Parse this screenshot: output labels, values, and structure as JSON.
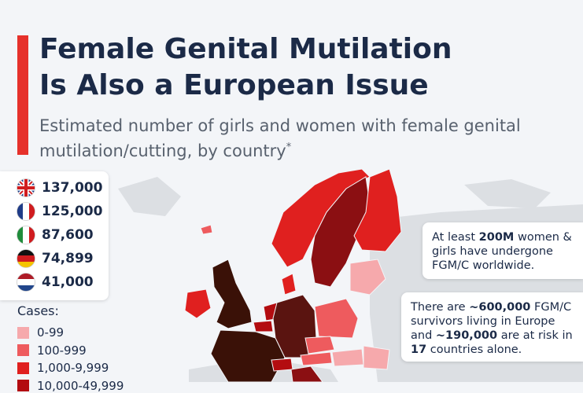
{
  "title_lines": [
    "Female Genital Mutilation",
    "Is Also a European Issue"
  ],
  "subtitle_lines": [
    "Estimated number of girls and women with female genital",
    "mutilation/cutting, by country"
  ],
  "subtitle_mark": "*",
  "top_countries": [
    "137,000",
    "125,000",
    "87,600",
    "74,899",
    "41,000"
  ],
  "legend": {
    "title": "Cases:",
    "items": [
      {
        "label": "0-99",
        "color": "#f6a9ac"
      },
      {
        "label": "100-999",
        "color": "#ee5b5e"
      },
      {
        "label": "1,000-9,999",
        "color": "#e0201f"
      },
      {
        "label": "10,000-49,999",
        "color": "#b30c10"
      }
    ]
  },
  "callouts": [
    [
      {
        "text": "At least "
      },
      {
        "text": "200M",
        "bold": true
      },
      {
        "text": " women & girls have undergone FGM/C worldwide."
      }
    ],
    [
      {
        "text": "There are "
      },
      {
        "text": "~600,000",
        "bold": true
      },
      {
        "text": " FGM/C survivors living in Europe and "
      },
      {
        "text": "~190,000",
        "bold": true
      },
      {
        "text": " are at risk in "
      },
      {
        "text": "17",
        "bold": true
      },
      {
        "text": " countries alone."
      }
    ]
  ]
}
